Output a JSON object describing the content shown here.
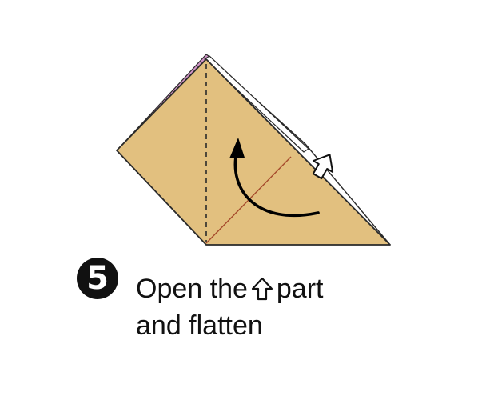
{
  "step": {
    "number": "5"
  },
  "instruction": {
    "line1_before": "Open the",
    "line1_icon": "up-arrow-outline-icon",
    "line1_after": "part",
    "line2": "and flatten"
  },
  "colors": {
    "paper": "#e2c07f",
    "paper_edge": "#2a2a2a",
    "back_layer": "#cf93c6",
    "fold_line": "#a64a2c",
    "arrow": "#000000",
    "badge": "#111111"
  }
}
